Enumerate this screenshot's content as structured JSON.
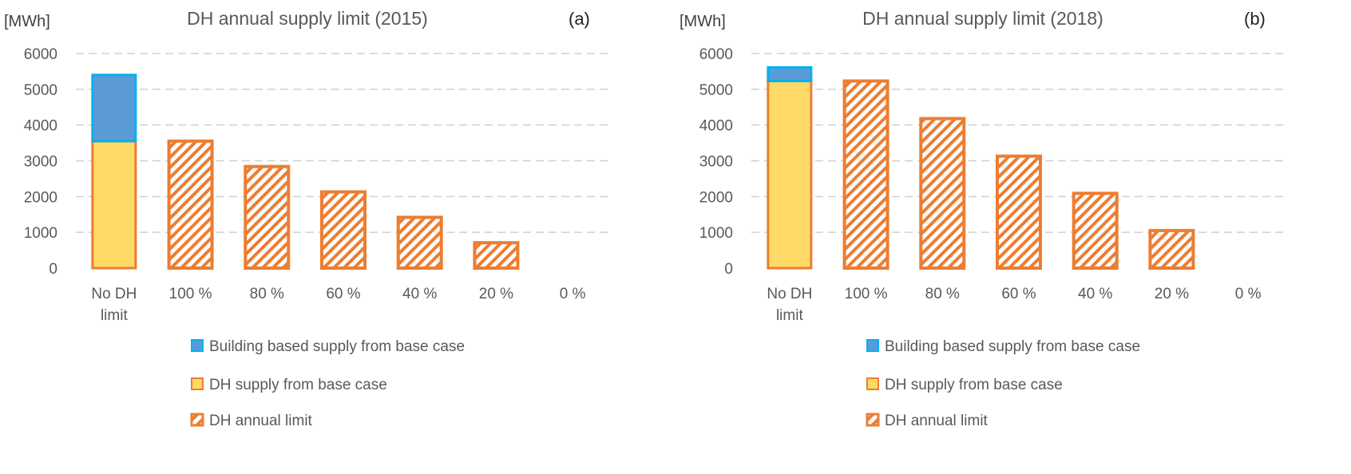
{
  "chart_data": [
    {
      "type": "bar",
      "panel_label": "(a)",
      "title": "DH annual supply limit (2015)",
      "unit_label": "[MWh]",
      "categories": [
        "No DH limit",
        "100 %",
        "80 %",
        "60 %",
        "40 %",
        "20 %",
        "0 %"
      ],
      "category_lines": [
        [
          "No DH",
          "limit"
        ],
        [
          "100 %"
        ],
        [
          "80 %"
        ],
        [
          "60 %"
        ],
        [
          "40 %"
        ],
        [
          "20 %"
        ],
        [
          "0 %"
        ]
      ],
      "yticks": [
        0,
        1000,
        2000,
        3000,
        4000,
        5000,
        6000
      ],
      "ylim": [
        0,
        6000
      ],
      "grid": true,
      "legend_position": "bottom",
      "series": [
        {
          "name": "Building based supply from base case",
          "values": [
            1850,
            null,
            null,
            null,
            null,
            null,
            null
          ],
          "stack": "base",
          "color": "#5b9bd5",
          "edge": "#00b0f0"
        },
        {
          "name": "DH supply from base case",
          "values": [
            3550,
            null,
            null,
            null,
            null,
            null,
            null
          ],
          "stack": "base",
          "color": "#ffd966",
          "edge": "#ed7d31"
        },
        {
          "name": "DH annual limit",
          "values": [
            null,
            3550,
            2840,
            2130,
            1420,
            710,
            0
          ],
          "stack": "limit",
          "color": "#ed7d31",
          "pattern": "hatch"
        }
      ]
    },
    {
      "type": "bar",
      "panel_label": "(b)",
      "title": "DH annual supply limit (2018)",
      "unit_label": "[MWh]",
      "categories": [
        "No DH limit",
        "100 %",
        "80 %",
        "60 %",
        "40 %",
        "20 %",
        "0 %"
      ],
      "category_lines": [
        [
          "No DH",
          "limit"
        ],
        [
          "100 %"
        ],
        [
          "80 %"
        ],
        [
          "60 %"
        ],
        [
          "40 %"
        ],
        [
          "20 %"
        ],
        [
          "0 %"
        ]
      ],
      "yticks": [
        0,
        1000,
        2000,
        3000,
        4000,
        5000,
        6000
      ],
      "ylim": [
        0,
        6000
      ],
      "grid": true,
      "legend_position": "bottom",
      "series": [
        {
          "name": "Building based supply from base case",
          "values": [
            380,
            null,
            null,
            null,
            null,
            null,
            null
          ],
          "stack": "base",
          "color": "#5b9bd5",
          "edge": "#00b0f0"
        },
        {
          "name": "DH supply from base case",
          "values": [
            5230,
            null,
            null,
            null,
            null,
            null,
            null
          ],
          "stack": "base",
          "color": "#ffd966",
          "edge": "#ed7d31"
        },
        {
          "name": "DH annual limit",
          "values": [
            null,
            5230,
            4180,
            3130,
            2090,
            1050,
            0
          ],
          "stack": "limit",
          "color": "#ed7d31",
          "pattern": "hatch"
        }
      ]
    }
  ]
}
